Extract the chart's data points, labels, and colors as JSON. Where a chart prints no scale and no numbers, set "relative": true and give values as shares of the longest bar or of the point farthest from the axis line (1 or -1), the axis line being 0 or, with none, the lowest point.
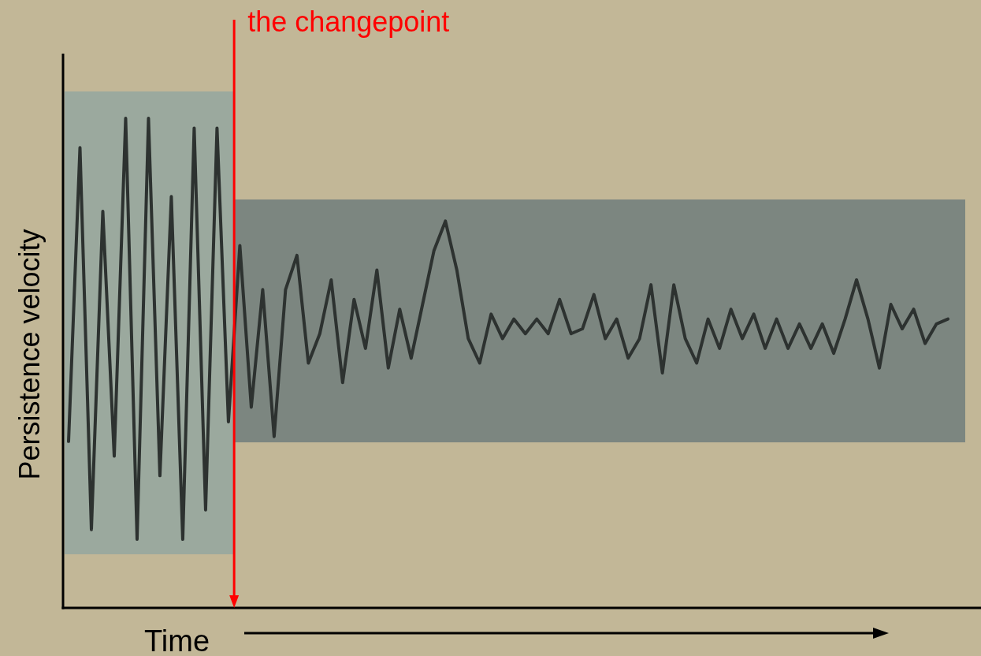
{
  "chart_data": {
    "type": "line",
    "relative": true,
    "xlabel": "Time",
    "ylabel": "Persistence velocity",
    "marker": "none",
    "line_style": "solid",
    "annotations": [
      "the changepoint"
    ],
    "categories": [
      null,
      null,
      null,
      null,
      null,
      null,
      null,
      null,
      null,
      null,
      null,
      null,
      null,
      null,
      null,
      null,
      null,
      null,
      null,
      null,
      null,
      null,
      null,
      null,
      null,
      null,
      null,
      null,
      null,
      null,
      null,
      null,
      null,
      null,
      null,
      null,
      null,
      null,
      null,
      null,
      null,
      null,
      null,
      null,
      null,
      null,
      null,
      null,
      null,
      null,
      null,
      null,
      null,
      null,
      null,
      null,
      null,
      null,
      null,
      null,
      null,
      null,
      null,
      null,
      null,
      null,
      null,
      null,
      null,
      null,
      null,
      null,
      null,
      null,
      null,
      null,
      null,
      null
    ],
    "series": [
      {
        "color": "#2d3230",
        "values": [
          0.34,
          0.94,
          0.16,
          0.81,
          0.31,
          1,
          0.14,
          1,
          0.27,
          0.84,
          0.14,
          0.98,
          0.2,
          0.98,
          0.38,
          0.74,
          0.41,
          0.65,
          0.35,
          0.65,
          0.72,
          0.5,
          0.56,
          0.67,
          0.46,
          0.63,
          0.53,
          0.69,
          0.49,
          0.61,
          0.51,
          0.62,
          0.73,
          0.79,
          0.69,
          0.55,
          0.5,
          0.6,
          0.55,
          0.59,
          0.56,
          0.59,
          0.56,
          0.63,
          0.56,
          0.57,
          0.64,
          0.55,
          0.59,
          0.51,
          0.55,
          0.66,
          0.48,
          0.66,
          0.55,
          0.5,
          0.59,
          0.53,
          0.61,
          0.55,
          0.6,
          0.53,
          0.59,
          0.53,
          0.58,
          0.53,
          0.58,
          0.52,
          0.59,
          0.67,
          0.59,
          0.49,
          0.62,
          0.57,
          0.61,
          0.54,
          0.58,
          0.59
        ]
      }
    ]
  }
}
